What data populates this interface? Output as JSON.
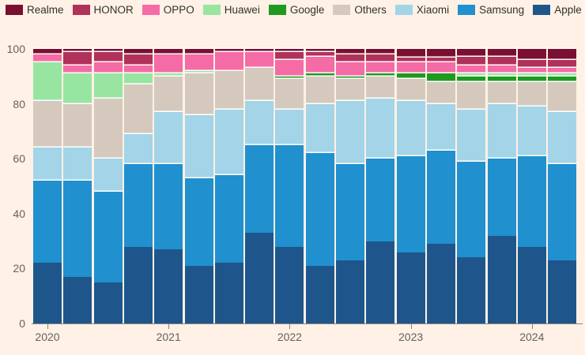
{
  "colors": {
    "background": "#fff1e5",
    "axis_line": "#8a827a",
    "axis_text": "#66605c",
    "legend_text": "#33302a",
    "segment_separator": "#ffffff"
  },
  "legend": {
    "items": [
      {
        "label": "Realme",
        "color": "#791032"
      },
      {
        "label": "HONOR",
        "color": "#b0325a"
      },
      {
        "label": "OPPO",
        "color": "#f56ba5"
      },
      {
        "label": "Huawei",
        "color": "#98e5a2"
      },
      {
        "label": "Google",
        "color": "#1e9b1e"
      },
      {
        "label": "Others",
        "color": "#d5c9bd"
      },
      {
        "label": "Xiaomi",
        "color": "#a3d4e8"
      },
      {
        "label": "Samsung",
        "color": "#2090cf"
      },
      {
        "label": "Apple",
        "color": "#1e568c"
      }
    ]
  },
  "chart_data": {
    "type": "bar",
    "stacked": true,
    "unit": "percent",
    "x": [
      "2020 Q1",
      "2020 Q2",
      "2020 Q3",
      "2020 Q4",
      "2021 Q1",
      "2021 Q2",
      "2021 Q3",
      "2021 Q4",
      "2022 Q1",
      "2022 Q2",
      "2022 Q3",
      "2022 Q4",
      "2023 Q1",
      "2023 Q2",
      "2023 Q3",
      "2023 Q4",
      "2024 Q1",
      "2024 Q2"
    ],
    "x_year_ticks": [
      {
        "label": "2020",
        "index": 0
      },
      {
        "label": "2021",
        "index": 4
      },
      {
        "label": "2022",
        "index": 8
      },
      {
        "label": "2023",
        "index": 12
      },
      {
        "label": "2024",
        "index": 16
      }
    ],
    "series": [
      {
        "name": "Apple",
        "color": "#1e568c",
        "values": [
          22,
          17,
          15,
          28,
          27,
          21,
          22,
          33,
          28,
          21,
          23,
          30,
          26,
          29,
          24,
          32,
          28,
          23
        ]
      },
      {
        "name": "Samsung",
        "color": "#2090cf",
        "values": [
          30,
          35,
          33,
          30,
          31,
          32,
          32,
          32,
          37,
          41,
          35,
          30,
          35,
          34,
          35,
          28,
          33,
          35
        ]
      },
      {
        "name": "Xiaomi",
        "color": "#a3d4e8",
        "values": [
          12,
          12,
          12,
          11,
          19,
          23,
          24,
          16,
          13,
          18,
          23,
          22,
          20,
          17,
          19,
          20,
          18,
          19
        ]
      },
      {
        "name": "Others",
        "color": "#d5c9bd",
        "values": [
          17,
          16,
          22,
          18,
          13,
          15,
          14,
          12,
          11,
          10,
          8,
          8,
          8,
          8,
          10,
          8,
          9,
          11
        ]
      },
      {
        "name": "Google",
        "color": "#1e9b1e",
        "values": [
          0,
          0,
          0,
          0,
          0,
          0,
          0,
          0,
          1,
          1,
          1,
          1,
          2,
          3,
          2,
          2,
          2,
          2
        ]
      },
      {
        "name": "Huawei",
        "color": "#98e5a2",
        "values": [
          14,
          11,
          9,
          4,
          1,
          1,
          0,
          0,
          0,
          0,
          0,
          0,
          0,
          0,
          1,
          1,
          1,
          1
        ]
      },
      {
        "name": "OPPO",
        "color": "#f56ba5",
        "values": [
          3,
          3,
          4,
          3,
          7,
          6,
          7,
          6,
          6,
          6,
          5,
          4,
          4,
          4,
          3,
          3,
          2,
          2
        ]
      },
      {
        "name": "HONOR",
        "color": "#b0325a",
        "values": [
          0,
          5,
          4,
          4,
          0,
          0,
          0,
          0,
          3,
          2,
          3,
          3,
          2,
          2,
          3,
          3,
          3,
          3
        ]
      },
      {
        "name": "Realme",
        "color": "#791032",
        "values": [
          2,
          1,
          1,
          2,
          2,
          2,
          1,
          1,
          1,
          1,
          2,
          2,
          3,
          3,
          3,
          3,
          4,
          4
        ]
      }
    ],
    "ylim": [
      0,
      100
    ],
    "yticks": [
      0,
      20,
      40,
      60,
      80,
      100
    ],
    "xlabel": "",
    "ylabel": "",
    "grid": false,
    "legend_position": "top"
  }
}
